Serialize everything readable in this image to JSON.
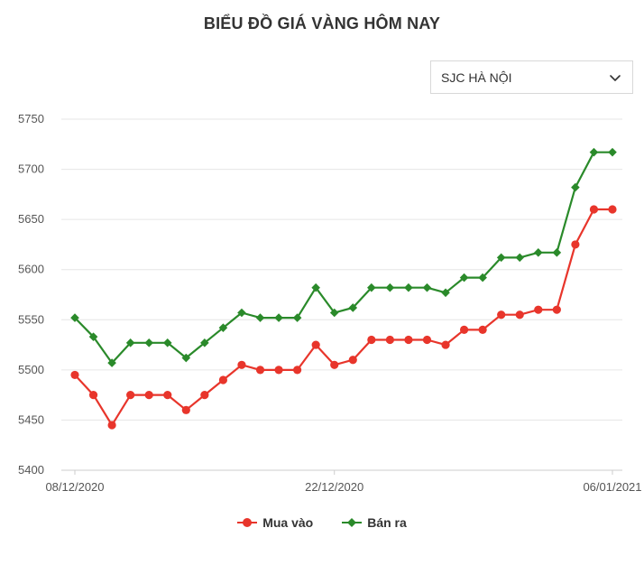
{
  "header": {
    "title": "BIỂU ĐỒ GIÁ VÀNG HÔM NAY"
  },
  "selector": {
    "value": "SJC HÀ NỘI",
    "icon": "chevron-down-icon"
  },
  "colors": {
    "buy": "#e8352b",
    "sell": "#2a8a2a",
    "grid": "#e6e6e6",
    "axis_text": "#555555"
  },
  "chart_data": {
    "type": "line",
    "title": "BIỂU ĐỒ GIÁ VÀNG HÔM NAY",
    "ylim": [
      5400,
      5750
    ],
    "yticks": [
      5400,
      5450,
      5500,
      5550,
      5600,
      5650,
      5700,
      5750
    ],
    "x_tick_labels": [
      {
        "index": 0,
        "label": "08/12/2020"
      },
      {
        "index": 14,
        "label": "22/12/2020"
      },
      {
        "index": 29,
        "label": "06/01/2021"
      }
    ],
    "grid": true,
    "legend_position": "bottom",
    "series": [
      {
        "name": "Mua vào",
        "color": "#e8352b",
        "marker": "circle",
        "values": [
          5495,
          5475,
          5445,
          5475,
          5475,
          5475,
          5460,
          5475,
          5490,
          5505,
          5500,
          5500,
          5500,
          5525,
          5505,
          5510,
          5530,
          5530,
          5530,
          5530,
          5525,
          5540,
          5540,
          5555,
          5555,
          5560,
          5560,
          5625,
          5660,
          5660
        ]
      },
      {
        "name": "Bán ra",
        "color": "#2a8a2a",
        "marker": "diamond",
        "values": [
          5552,
          5533,
          5507,
          5527,
          5527,
          5527,
          5512,
          5527,
          5542,
          5557,
          5552,
          5552,
          5552,
          5582,
          5557,
          5562,
          5582,
          5582,
          5582,
          5582,
          5577,
          5592,
          5592,
          5612,
          5612,
          5617,
          5617,
          5682,
          5717,
          5717
        ]
      }
    ]
  },
  "legend": {
    "items": [
      {
        "label": "Mua vào"
      },
      {
        "label": "Bán ra"
      }
    ]
  }
}
